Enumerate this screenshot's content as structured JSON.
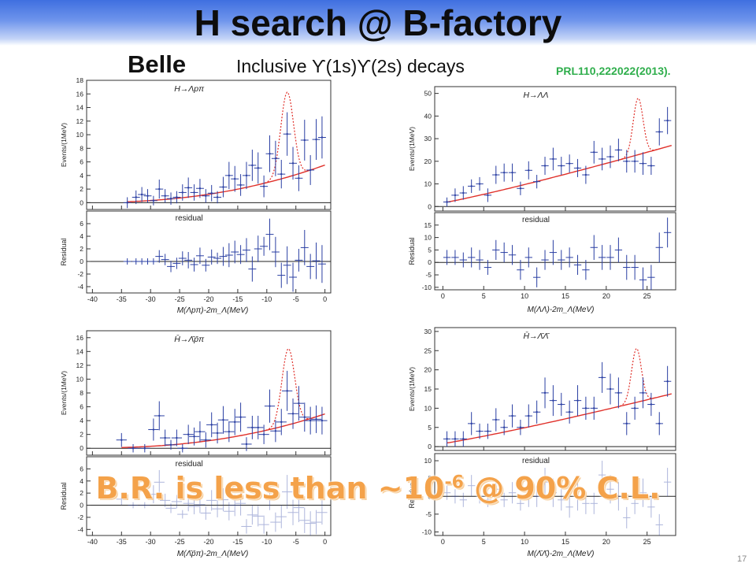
{
  "slide": {
    "title": "H search @ B-factory",
    "experiment": "Belle",
    "subtitle": "Inclusive ϒ(1s)ϒ(2s) decays",
    "reference": "PRL110,222022(2013).",
    "overlay_main": "B.R. is less than ~10",
    "overlay_exp": "-6",
    "overlay_tail": " @ 90% C.L.",
    "page_number": "17"
  },
  "colors": {
    "title_band": "#3f6fe0",
    "data_points": "#2a3fa3",
    "fit_curve": "#e0302a",
    "signal_curve": "#e0302a",
    "reference": "#2fae4c",
    "overlay": "#f4a24a"
  },
  "chart_data": [
    {
      "type": "scatter",
      "id": "lambda-p-pi",
      "process_label": "H→Λpπ",
      "xlabel": "M(Λpπ)-2m_Λ(MeV)",
      "ylabel_top": "Events/(1MeV)",
      "ylabel_bottom": "Residual",
      "residual_label": "residual",
      "xlim": [
        -41,
        1
      ],
      "ylim_top": [
        -1,
        18
      ],
      "ylim_bottom": [
        -5,
        8
      ],
      "xticks": [
        -40,
        -35,
        -30,
        -25,
        -20,
        -15,
        -10,
        -5,
        0
      ],
      "yticks_top": [
        0,
        2,
        4,
        6,
        8,
        10,
        12,
        14,
        16,
        18
      ],
      "yticks_bottom": [
        -4,
        -2,
        0,
        2,
        4,
        6
      ],
      "x": [
        -34,
        -32.5,
        -31.5,
        -30.5,
        -29.5,
        -28.5,
        -27.5,
        -26.5,
        -25.5,
        -24.5,
        -23.5,
        -22.5,
        -21.5,
        -20.5,
        -19.5,
        -18.5,
        -17.5,
        -16.5,
        -15.5,
        -14.5,
        -13.5,
        -12.5,
        -11.5,
        -10.5,
        -9.5,
        -8.5,
        -7.5,
        -6.5,
        -5.5,
        -4.5,
        -3.5,
        -2.5,
        -1.5,
        -0.5
      ],
      "y": [
        0,
        0.8,
        1.2,
        1.0,
        0.3,
        2.0,
        1.0,
        0.6,
        0.8,
        1.5,
        2.2,
        1.5,
        2.1,
        1.0,
        1.4,
        0.8,
        2.3,
        4.0,
        3.5,
        2.6,
        4.0,
        5.5,
        5.1,
        2.4,
        7.2,
        6.5,
        4.2,
        10.1,
        5.8,
        3.6,
        9.2,
        4.8,
        9.3,
        9.6
      ],
      "err": [
        0.8,
        1.0,
        1.1,
        1.0,
        0.7,
        1.4,
        1.0,
        0.9,
        0.9,
        1.2,
        1.5,
        1.2,
        1.4,
        1.0,
        1.2,
        0.9,
        1.5,
        2.0,
        1.9,
        1.6,
        2.0,
        2.3,
        2.3,
        1.6,
        2.7,
        2.6,
        2.1,
        3.2,
        2.4,
        1.9,
        3.0,
        2.2,
        3.0,
        3.1
      ],
      "fit_coefficients": [
        0.04,
        5.8,
        8.5
      ],
      "signal": {
        "center": -6.5,
        "width": 1.1,
        "height": 12.5
      },
      "residual_y": [
        0,
        0,
        0,
        0,
        0,
        0.8,
        0.3,
        -0.8,
        -0.3,
        0.5,
        0.2,
        -0.5,
        0.9,
        -0.6,
        0.7,
        0.5,
        0.8,
        1.0,
        1.5,
        1.1,
        1.8,
        -1.2,
        2.0,
        2.4,
        4.3,
        1.5,
        -2.2,
        -0.6,
        -2.5,
        0.2,
        2.2,
        -0.8,
        0.1,
        -0.4
      ],
      "residual_err": [
        0.5,
        0.5,
        0.5,
        0.5,
        0.5,
        1.0,
        0.9,
        0.9,
        0.9,
        1.1,
        1.3,
        1.1,
        1.3,
        1.0,
        1.2,
        0.9,
        1.5,
        1.9,
        1.8,
        1.5,
        1.9,
        2.0,
        2.1,
        1.5,
        2.5,
        2.4,
        2.0,
        3.0,
        2.3,
        1.8,
        2.8,
        2.0,
        2.9,
        3.0
      ]
    },
    {
      "type": "scatter",
      "id": "lambda-lambda",
      "process_label": "H→ΛΛ",
      "xlabel": "M(ΛΛ)-2m_Λ(MeV)",
      "ylabel_top": "Events/(1MeV)",
      "ylabel_bottom": "Residual",
      "residual_label": "residual",
      "xlim": [
        -1,
        28.5
      ],
      "ylim_top": [
        -2,
        53
      ],
      "ylim_bottom": [
        -11,
        20
      ],
      "xticks": [
        0,
        5,
        10,
        15,
        20,
        25
      ],
      "yticks_top": [
        0,
        10,
        20,
        30,
        40,
        50
      ],
      "yticks_bottom": [
        -10,
        -5,
        0,
        5,
        10,
        15
      ],
      "x": [
        0.5,
        1.5,
        2.5,
        3.5,
        4.5,
        5.5,
        6.5,
        7.5,
        8.5,
        9.5,
        10.5,
        11.5,
        12.5,
        13.5,
        14.5,
        15.5,
        16.5,
        17.5,
        18.5,
        19.5,
        20.5,
        21.5,
        22.5,
        23.5,
        24.5,
        25.5,
        26.5,
        27.5
      ],
      "y": [
        2,
        5,
        6,
        9,
        10,
        5,
        14,
        15,
        15,
        8,
        16,
        11,
        18,
        21,
        18,
        19,
        17,
        14,
        24,
        21,
        22,
        25,
        20,
        20,
        19,
        18,
        33,
        38
      ],
      "err": [
        2,
        3,
        3,
        3,
        3,
        3,
        4,
        4,
        4,
        3,
        4,
        3,
        4,
        5,
        4,
        4,
        4,
        4,
        5,
        5,
        5,
        5,
        5,
        5,
        5,
        4,
        6,
        6
      ],
      "fit_coefficients": [
        1,
        26.5,
        0.85
      ],
      "signal": {
        "center": 23.9,
        "width": 0.6,
        "height": 25
      },
      "residual_y": [
        2,
        2,
        1,
        2,
        1,
        -2,
        5,
        4,
        3,
        -3,
        2,
        -6,
        1,
        4,
        1,
        2,
        -1,
        -3,
        6,
        2,
        2,
        5,
        -2,
        -2,
        -7,
        -6,
        6,
        12
      ],
      "residual_err": [
        3,
        3,
        3,
        4,
        4,
        3,
        4,
        4,
        4,
        4,
        4,
        4,
        4,
        5,
        4,
        4,
        4,
        4,
        5,
        5,
        5,
        5,
        5,
        5,
        5,
        5,
        6,
        6
      ]
    },
    {
      "type": "scatter",
      "id": "anti-lambda-p-pi",
      "process_label": "H̄→Λ̄p̄π",
      "xlabel": "M(Λ̄p̄π)-2m_Λ(MeV)",
      "ylabel_top": "Events/(1MeV)",
      "ylabel_bottom": "Residual",
      "residual_label": "residual",
      "xlim": [
        -41,
        1
      ],
      "ylim_top": [
        -1,
        17
      ],
      "ylim_bottom": [
        -5,
        8
      ],
      "xticks": [
        -40,
        -35,
        -30,
        -25,
        -20,
        -15,
        -10,
        -5,
        0
      ],
      "yticks_top": [
        0,
        2,
        4,
        6,
        8,
        10,
        12,
        14,
        16
      ],
      "yticks_bottom": [
        -4,
        -2,
        0,
        2,
        4,
        6
      ],
      "x": [
        -35,
        -33,
        -31,
        -29.5,
        -28.5,
        -27.5,
        -26.5,
        -25.5,
        -24.5,
        -23.5,
        -22.5,
        -21.5,
        -20.5,
        -19.5,
        -18.5,
        -17.5,
        -16.5,
        -15.5,
        -14.5,
        -13.5,
        -12.5,
        -11.5,
        -10.5,
        -9.5,
        -8.5,
        -7.5,
        -6.5,
        -5.5,
        -4.5,
        -3.5,
        -2.5,
        -1.5,
        -0.5
      ],
      "y": [
        1.2,
        0,
        0,
        2.7,
        4.7,
        1.5,
        0.5,
        1.5,
        0,
        2.0,
        1.7,
        2.4,
        1.2,
        3.4,
        2.2,
        4.1,
        2.4,
        3.8,
        4.5,
        0.6,
        3.0,
        3.0,
        2.0,
        6.1,
        2.5,
        3.8,
        8.3,
        5.0,
        6.5,
        4.5,
        4.0,
        4.2,
        4.0
      ],
      "err": [
        1.0,
        0.6,
        0.6,
        1.6,
        2.1,
        1.2,
        0.7,
        1.2,
        0.6,
        1.4,
        1.3,
        1.5,
        1.1,
        1.8,
        1.5,
        2.0,
        1.5,
        1.9,
        2.1,
        1.0,
        1.7,
        1.7,
        1.4,
        2.4,
        1.6,
        1.9,
        2.9,
        2.2,
        2.5,
        2.1,
        2.0,
        2.0,
        2.0
      ],
      "fit_coefficients": [
        0.05,
        5.2,
        8.8
      ],
      "signal": {
        "center": -6.3,
        "width": 1.1,
        "height": 11
      },
      "residual_y": [
        1.0,
        0,
        0,
        1.8,
        3.8,
        0.8,
        -0.5,
        0.6,
        -1.5,
        0.3,
        -0.2,
        0.1,
        -1.3,
        0.8,
        -0.6,
        0.9,
        -1.0,
        0.0,
        0.3,
        -3.5,
        -1.6,
        -1.8,
        -3.2,
        1.5,
        -2.8,
        -1.9,
        2.2,
        -1.2,
        -0.4,
        -2.5,
        -3.0,
        -2.8,
        -1.2
      ],
      "residual_err": [
        1.0,
        0.5,
        0.5,
        1.5,
        2.0,
        1.1,
        0.8,
        1.1,
        0.7,
        1.3,
        1.3,
        1.4,
        1.1,
        1.7,
        1.4,
        1.9,
        1.5,
        1.8,
        2.0,
        1.2,
        1.6,
        1.7,
        1.5,
        2.3,
        1.6,
        1.9,
        2.8,
        2.1,
        2.4,
        2.1,
        2.0,
        2.0,
        2.0
      ]
    },
    {
      "type": "scatter",
      "id": "anti-lambda-lambda",
      "process_label": "H̄→Λ̄Λ̄",
      "xlabel": "M(Λ̄Λ̄)-2m_Λ(MeV)",
      "ylabel_top": "Events/(1MeV)",
      "ylabel_bottom": "Residual",
      "residual_label": "residual",
      "xlim": [
        -1,
        28.5
      ],
      "ylim_top": [
        -1,
        31
      ],
      "ylim_bottom": [
        -11,
        12
      ],
      "xticks": [
        0,
        5,
        10,
        15,
        20,
        25
      ],
      "yticks_top": [
        0,
        5,
        10,
        15,
        20,
        25,
        30
      ],
      "yticks_bottom": [
        -10,
        -5,
        0,
        5,
        10
      ],
      "x": [
        0.5,
        1.5,
        2.5,
        3.5,
        4.5,
        5.5,
        6.5,
        7.5,
        8.5,
        9.5,
        10.5,
        11.5,
        12.5,
        13.5,
        14.5,
        15.5,
        16.5,
        17.5,
        18.5,
        19.5,
        20.5,
        21.5,
        22.5,
        23.5,
        24.5,
        25.5,
        26.5,
        27.5
      ],
      "y": [
        2,
        2,
        2,
        6,
        4,
        4,
        7,
        5,
        8,
        5,
        8,
        9,
        14,
        12,
        11,
        9,
        12,
        10,
        10,
        18,
        15,
        14,
        6,
        10,
        14,
        11,
        6,
        17
      ],
      "err": [
        2,
        2,
        2,
        3,
        2,
        2,
        3,
        2,
        3,
        2,
        3,
        3,
        4,
        4,
        3,
        3,
        4,
        3,
        3,
        4,
        4,
        4,
        3,
        3,
        4,
        3,
        3,
        4
      ],
      "fit_coefficients": [
        0.5,
        13.5,
        0.9
      ],
      "signal": {
        "center": 23.7,
        "width": 0.6,
        "height": 14
      },
      "residual_y": [
        1,
        0,
        -1,
        3,
        0,
        -1,
        2,
        -1,
        1,
        -2,
        0,
        0,
        4,
        1,
        -1,
        -3,
        0,
        -2,
        -2,
        6,
        2,
        0,
        -6,
        -2,
        1,
        -3,
        -8,
        4
      ],
      "residual_err": [
        2,
        2,
        2,
        3,
        2,
        2,
        3,
        2,
        3,
        2,
        3,
        3,
        4,
        4,
        3,
        3,
        4,
        3,
        3,
        4,
        4,
        4,
        3,
        3,
        4,
        3,
        3,
        4
      ]
    }
  ]
}
